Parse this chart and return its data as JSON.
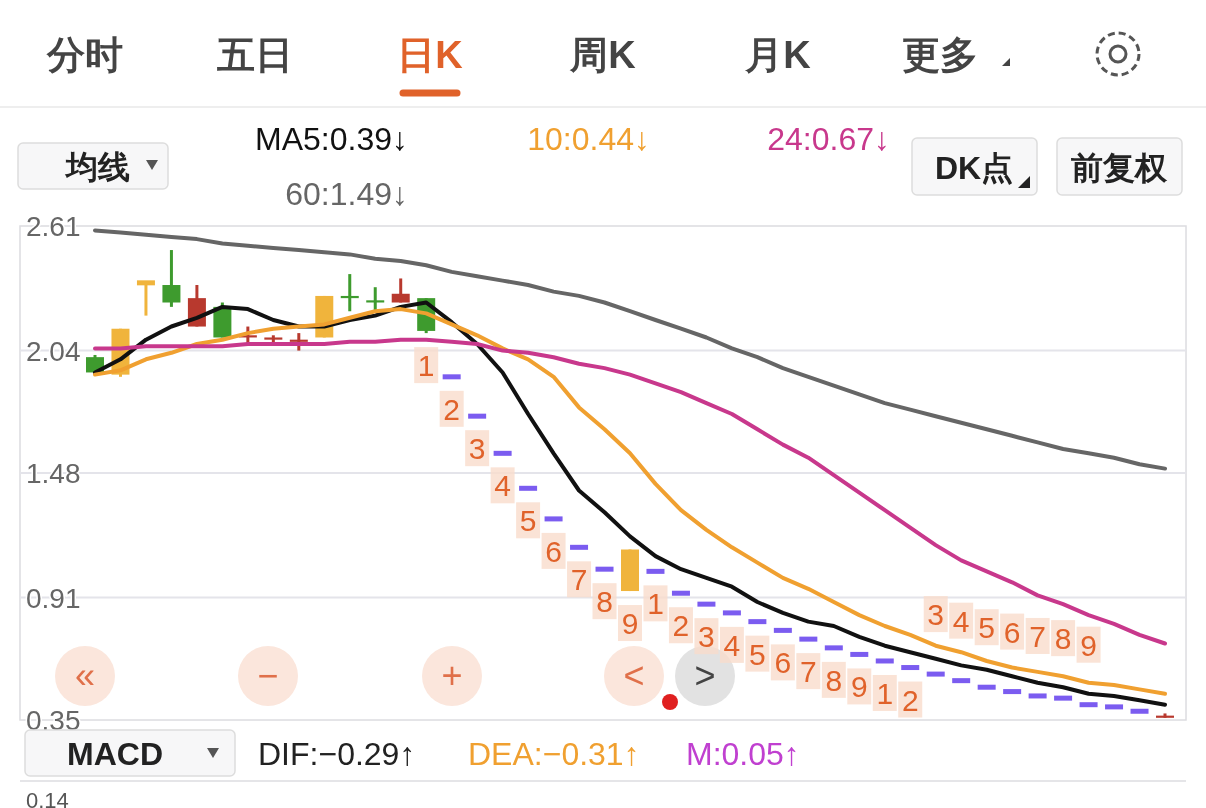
{
  "chart_data": [
    {
      "type": "candlestick",
      "categories": [
        null,
        null,
        null,
        null,
        null,
        null,
        null,
        null,
        null,
        null,
        null,
        null,
        null,
        null,
        null,
        null,
        null,
        null,
        null,
        null,
        null,
        null,
        null,
        null,
        null,
        null,
        null,
        null,
        null,
        null,
        null,
        null,
        null,
        null,
        null,
        null,
        null,
        null,
        null,
        null,
        null,
        null,
        null
      ],
      "ohlc": [
        [
          2.01,
          2.02,
          1.94,
          1.94
        ],
        [
          1.93,
          2.14,
          1.92,
          2.14
        ],
        [
          2.35,
          2.35,
          2.2,
          2.35
        ],
        [
          2.34,
          2.5,
          2.24,
          2.26
        ],
        [
          2.15,
          2.34,
          2.15,
          2.28
        ],
        [
          2.24,
          2.26,
          2.1,
          2.1
        ],
        [
          2.1,
          2.15,
          2.07,
          2.11
        ],
        [
          2.09,
          2.11,
          2.07,
          2.1
        ],
        [
          2.08,
          2.12,
          2.04,
          2.09
        ],
        [
          2.1,
          2.29,
          2.1,
          2.29
        ],
        [
          2.29,
          2.39,
          2.22,
          2.28
        ],
        [
          2.27,
          2.33,
          2.22,
          2.26
        ],
        [
          2.26,
          2.37,
          2.26,
          2.3
        ],
        [
          2.28,
          2.28,
          2.12,
          2.13
        ],
        [
          1.92,
          1.92,
          1.92,
          1.92
        ],
        [
          1.74,
          1.74,
          1.74,
          1.74
        ],
        [
          1.57,
          1.57,
          1.57,
          1.57
        ],
        [
          1.41,
          1.41,
          1.41,
          1.41
        ],
        [
          1.27,
          1.27,
          1.27,
          1.27
        ],
        [
          1.14,
          1.14,
          1.14,
          1.14
        ],
        [
          1.04,
          1.04,
          1.04,
          1.04
        ],
        [
          0.94,
          1.13,
          0.94,
          1.13
        ],
        [
          1.03,
          1.03,
          1.03,
          1.03
        ],
        [
          0.93,
          0.93,
          0.93,
          0.93
        ],
        [
          0.88,
          0.88,
          0.88,
          0.88
        ],
        [
          0.84,
          0.84,
          0.84,
          0.84
        ],
        [
          0.8,
          0.8,
          0.8,
          0.8
        ],
        [
          0.76,
          0.76,
          0.76,
          0.76
        ],
        [
          0.72,
          0.72,
          0.72,
          0.72
        ],
        [
          0.68,
          0.68,
          0.68,
          0.68
        ],
        [
          0.65,
          0.65,
          0.65,
          0.65
        ],
        [
          0.62,
          0.62,
          0.62,
          0.62
        ],
        [
          0.59,
          0.59,
          0.59,
          0.59
        ],
        [
          0.56,
          0.56,
          0.56,
          0.56
        ],
        [
          0.53,
          0.53,
          0.53,
          0.53
        ],
        [
          0.5,
          0.5,
          0.5,
          0.5
        ],
        [
          0.48,
          0.48,
          0.48,
          0.48
        ],
        [
          0.46,
          0.46,
          0.46,
          0.46
        ],
        [
          0.45,
          0.45,
          0.45,
          0.45
        ],
        [
          0.42,
          0.42,
          0.42,
          0.42
        ],
        [
          0.41,
          0.41,
          0.41,
          0.41
        ],
        [
          0.39,
          0.39,
          0.39,
          0.39
        ],
        [
          0.36,
          0.38,
          0.36,
          0.37
        ]
      ],
      "colors": [
        "#3e9b2e",
        "#f0b43c",
        "#f0b43c",
        "#3e9b2e",
        "#b8392e",
        "#3e9b2e",
        "#b8392e",
        "#b8392e",
        "#b8392e",
        "#f0b43c",
        "#3e9b2e",
        "#3e9b2e",
        "#b8392e",
        "#3e9b2e",
        "#7b5cf0",
        "#7b5cf0",
        "#7b5cf0",
        "#7b5cf0",
        "#7b5cf0",
        "#7b5cf0",
        "#7b5cf0",
        "#f0b43c",
        "#7b5cf0",
        "#7b5cf0",
        "#7b5cf0",
        "#7b5cf0",
        "#7b5cf0",
        "#7b5cf0",
        "#7b5cf0",
        "#7b5cf0",
        "#7b5cf0",
        "#7b5cf0",
        "#7b5cf0",
        "#7b5cf0",
        "#7b5cf0",
        "#7b5cf0",
        "#7b5cf0",
        "#7b5cf0",
        "#7b5cf0",
        "#7b5cf0",
        "#7b5cf0",
        "#7b5cf0",
        "#b8392e"
      ],
      "value_labels": [
        null,
        null,
        null,
        null,
        null,
        null,
        null,
        null,
        null,
        null,
        null,
        null,
        null,
        "1",
        "2",
        "3",
        "4",
        "5",
        "6",
        "7",
        "8",
        "9",
        "1",
        "2",
        "3",
        "4",
        "5",
        "6",
        "7",
        "8",
        "9",
        "1",
        "2",
        "3",
        "4",
        "5",
        "6",
        "7",
        "8",
        "9",
        null,
        null,
        null
      ],
      "series": [
        {
          "name": "MA5:0.39↓",
          "type": "line",
          "color": "#111111",
          "values": [
            1.94,
            2.0,
            2.09,
            2.15,
            2.19,
            2.24,
            2.23,
            2.18,
            2.15,
            2.15,
            2.18,
            2.2,
            2.24,
            2.26,
            2.17,
            2.07,
            1.94,
            1.75,
            1.57,
            1.4,
            1.3,
            1.19,
            1.1,
            1.04,
            1.0,
            0.96,
            0.89,
            0.84,
            0.8,
            0.78,
            0.73,
            0.69,
            0.66,
            0.63,
            0.6,
            0.58,
            0.55,
            0.52,
            0.5,
            0.47,
            0.46,
            0.44,
            0.42
          ]
        },
        {
          "name": "10:0.44↓",
          "type": "line",
          "color": "#f0a030",
          "values": [
            1.93,
            1.95,
            2.0,
            2.03,
            2.07,
            2.09,
            2.12,
            2.14,
            2.15,
            2.16,
            2.19,
            2.22,
            2.23,
            2.21,
            2.16,
            2.11,
            2.05,
            2.0,
            1.92,
            1.78,
            1.68,
            1.57,
            1.43,
            1.31,
            1.22,
            1.14,
            1.07,
            1.0,
            0.95,
            0.89,
            0.83,
            0.78,
            0.74,
            0.69,
            0.66,
            0.62,
            0.59,
            0.57,
            0.55,
            0.52,
            0.51,
            0.49,
            0.47
          ]
        },
        {
          "name": "24:0.67↓",
          "type": "line",
          "color": "#c8388c",
          "values": [
            2.05,
            2.05,
            2.06,
            2.06,
            2.06,
            2.06,
            2.07,
            2.07,
            2.07,
            2.07,
            2.08,
            2.08,
            2.09,
            2.09,
            2.08,
            2.07,
            2.04,
            2.03,
            2.01,
            1.98,
            1.96,
            1.93,
            1.89,
            1.85,
            1.8,
            1.75,
            1.68,
            1.61,
            1.55,
            1.47,
            1.39,
            1.31,
            1.23,
            1.15,
            1.08,
            1.03,
            0.98,
            0.92,
            0.88,
            0.83,
            0.79,
            0.74,
            0.7
          ]
        },
        {
          "name": "60:1.49↓",
          "type": "line",
          "color": "#666666",
          "values": [
            2.59,
            2.58,
            2.57,
            2.56,
            2.55,
            2.53,
            2.52,
            2.51,
            2.5,
            2.49,
            2.48,
            2.46,
            2.45,
            2.43,
            2.4,
            2.38,
            2.36,
            2.34,
            2.31,
            2.29,
            2.26,
            2.22,
            2.18,
            2.14,
            2.1,
            2.05,
            2.01,
            1.96,
            1.92,
            1.88,
            1.84,
            1.8,
            1.77,
            1.74,
            1.71,
            1.68,
            1.65,
            1.62,
            1.59,
            1.57,
            1.55,
            1.52,
            1.5
          ]
        }
      ],
      "ylim": [
        0.35,
        2.61
      ],
      "yticks": [
        0.35,
        0.91,
        1.48,
        2.04,
        2.61
      ],
      "grid": "y",
      "legend": "top",
      "marker": "none",
      "annotations": [
        "分时",
        "五日",
        "日K",
        "周K",
        "月K",
        "更多",
        "均线",
        "DK点",
        "前复权",
        "«",
        "−",
        "+",
        "<",
        ">"
      ]
    },
    {
      "type": "other",
      "title": "MACD",
      "annotations": [
        "DIF:−0.29↑",
        "DEA:−0.31↑",
        "M:0.05↑",
        "0.14"
      ]
    }
  ]
}
